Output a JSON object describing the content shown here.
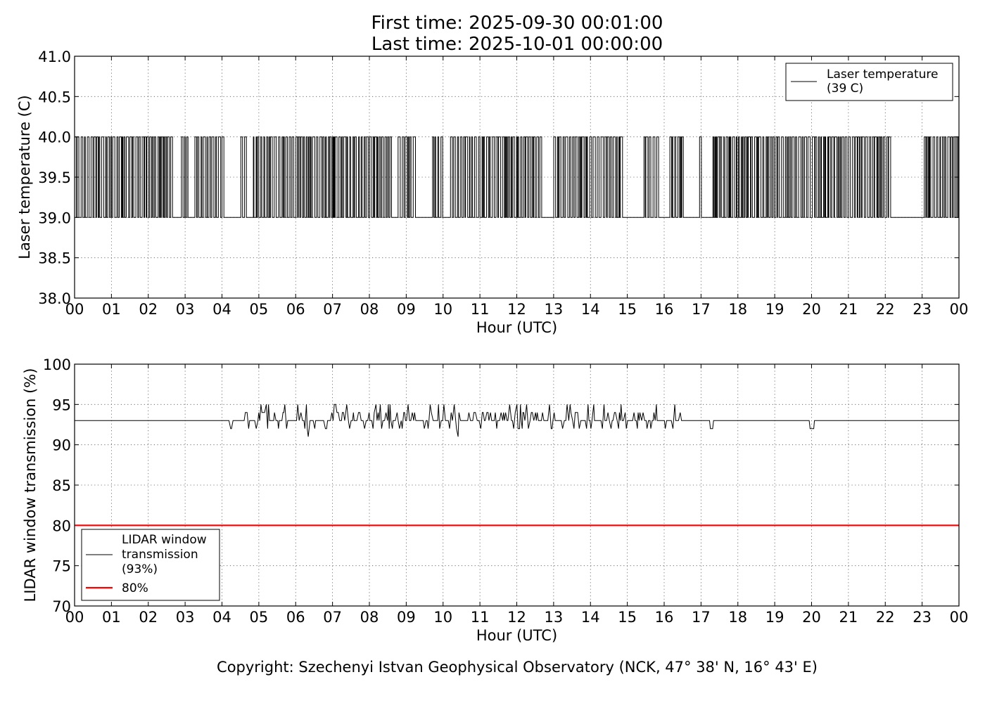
{
  "header": {
    "first_time": "First time: 2025-09-30 00:01:00",
    "last_time": "Last time: 2025-10-01 00:00:00"
  },
  "footer": {
    "copyright": "Copyright: Szechenyi Istvan Geophysical Observatory (NCK, 47° 38' N, 16° 43' E)"
  },
  "chart_data": [
    {
      "type": "line",
      "xlabel": "Hour (UTC)",
      "ylabel": "Laser temperature (C)",
      "xlim": [
        0,
        24
      ],
      "ylim": [
        38.0,
        41.0
      ],
      "x_ticks": [
        "00",
        "01",
        "02",
        "03",
        "04",
        "05",
        "06",
        "07",
        "08",
        "09",
        "10",
        "11",
        "12",
        "13",
        "14",
        "15",
        "16",
        "17",
        "18",
        "19",
        "20",
        "21",
        "22",
        "23",
        "00"
      ],
      "y_ticks": [
        "38.0",
        "38.5",
        "39.0",
        "39.5",
        "40.0",
        "40.5",
        "41.0"
      ],
      "grid": true,
      "legend_position": "top-right",
      "series": [
        {
          "name": "Laser temperature (39 C)",
          "legend_lines": [
            "Laser temperature",
            "(39 C)"
          ],
          "color": "#000000",
          "values": "oscillates between 39.0 and 40.0; flat at 39.0 during quiet periods",
          "low": 39.0,
          "high": 40.0,
          "quiet_periods": [
            [
              2.6,
              2.8
            ],
            [
              3.05,
              3.2
            ],
            [
              4.0,
              4.45
            ],
            [
              4.6,
              4.75
            ],
            [
              8.6,
              8.75
            ],
            [
              9.25,
              9.7
            ],
            [
              9.95,
              10.1
            ],
            [
              12.6,
              12.9
            ],
            [
              14.85,
              15.4
            ],
            [
              15.8,
              16.1
            ],
            [
              16.5,
              16.9
            ],
            [
              16.95,
              17.25
            ],
            [
              22.1,
              23.0
            ]
          ]
        }
      ]
    },
    {
      "type": "line",
      "xlabel": "Hour (UTC)",
      "ylabel": "LIDAR window transmission (%)",
      "xlim": [
        0,
        24
      ],
      "ylim": [
        70,
        100
      ],
      "x_ticks": [
        "00",
        "01",
        "02",
        "03",
        "04",
        "05",
        "06",
        "07",
        "08",
        "09",
        "10",
        "11",
        "12",
        "13",
        "14",
        "15",
        "16",
        "17",
        "18",
        "19",
        "20",
        "21",
        "22",
        "23",
        "00"
      ],
      "y_ticks": [
        "70",
        "75",
        "80",
        "85",
        "90",
        "95",
        "100"
      ],
      "grid": true,
      "legend_position": "bottom-left",
      "series": [
        {
          "name": "LIDAR window transmission (93%)",
          "legend_lines": [
            "LIDAR window",
            "transmission",
            "(93%)"
          ],
          "color": "#000000",
          "baseline": 93,
          "noisy_range": [
            4.6,
            16.4
          ],
          "min": 91,
          "max": 95,
          "dips": [
            [
              4.2,
              92
            ],
            [
              17.25,
              92
            ],
            [
              19.97,
              92
            ]
          ]
        },
        {
          "name": "80%",
          "legend_lines": [
            "80%"
          ],
          "color": "#ff0000",
          "value": 80
        }
      ]
    }
  ]
}
